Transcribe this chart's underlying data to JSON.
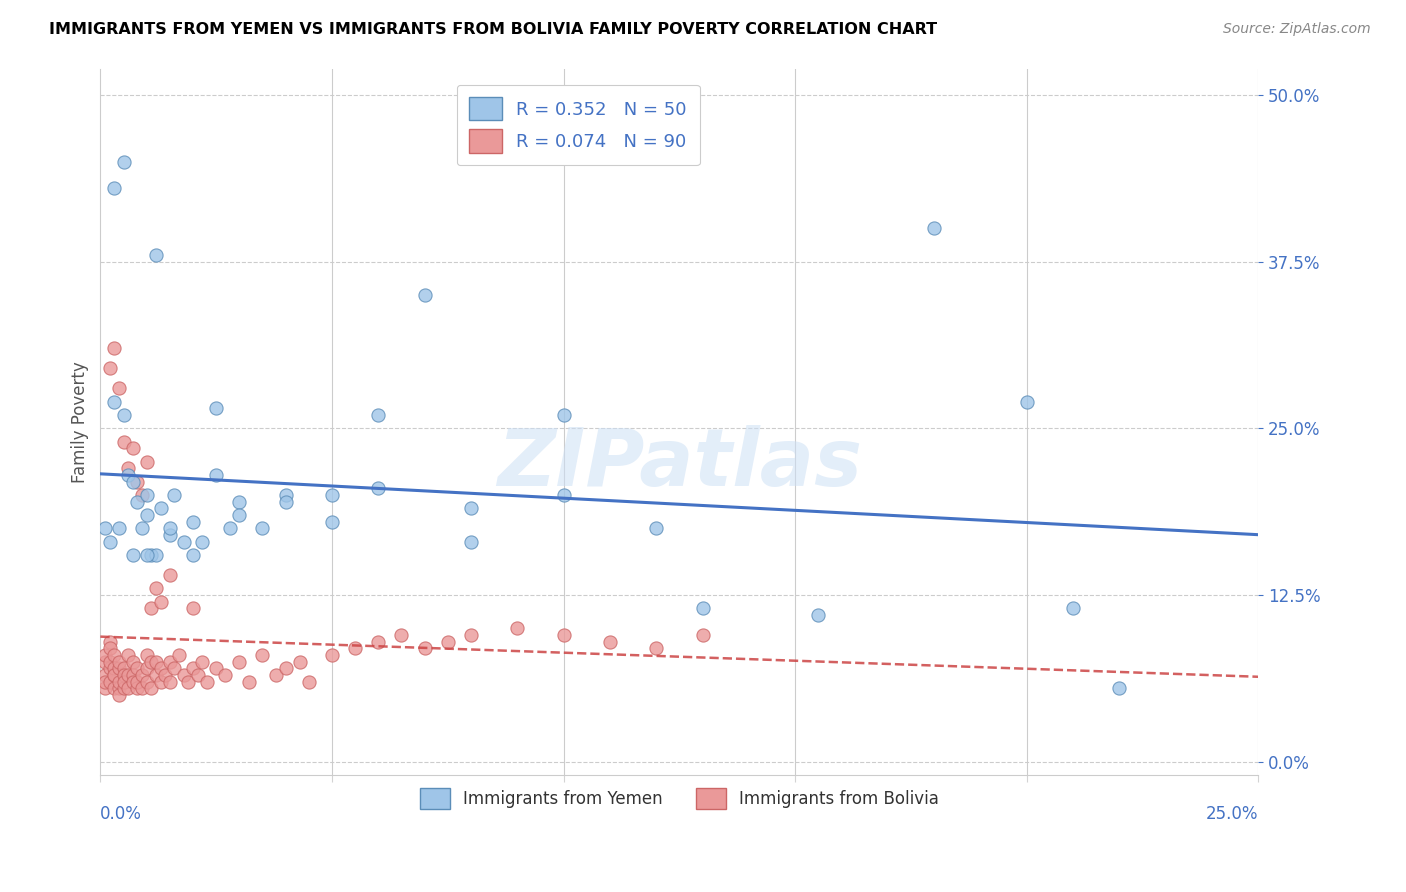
{
  "title": "IMMIGRANTS FROM YEMEN VS IMMIGRANTS FROM BOLIVIA FAMILY POVERTY CORRELATION CHART",
  "source": "Source: ZipAtlas.com",
  "ylabel": "Family Poverty",
  "ytick_labels": [
    "0.0%",
    "12.5%",
    "25.0%",
    "37.5%",
    "50.0%"
  ],
  "ytick_values": [
    0.0,
    0.125,
    0.25,
    0.375,
    0.5
  ],
  "xlim": [
    0.0,
    0.25
  ],
  "ylim": [
    -0.01,
    0.52
  ],
  "color_yemen": "#9fc5e8",
  "color_bolivia": "#ea9999",
  "color_line_yemen": "#4472c4",
  "color_line_bolivia": "#cc4444",
  "watermark": "ZIPatlas",
  "yemen_x": [
    0.001,
    0.002,
    0.003,
    0.004,
    0.005,
    0.006,
    0.007,
    0.008,
    0.009,
    0.01,
    0.01,
    0.011,
    0.012,
    0.013,
    0.015,
    0.016,
    0.018,
    0.02,
    0.022,
    0.025,
    0.028,
    0.03,
    0.035,
    0.04,
    0.05,
    0.06,
    0.07,
    0.08,
    0.1,
    0.12,
    0.003,
    0.005,
    0.007,
    0.01,
    0.012,
    0.015,
    0.02,
    0.025,
    0.03,
    0.04,
    0.05,
    0.06,
    0.08,
    0.1,
    0.13,
    0.155,
    0.18,
    0.2,
    0.21,
    0.22
  ],
  "yemen_y": [
    0.175,
    0.165,
    0.27,
    0.175,
    0.26,
    0.215,
    0.21,
    0.195,
    0.175,
    0.185,
    0.2,
    0.155,
    0.155,
    0.19,
    0.17,
    0.2,
    0.165,
    0.18,
    0.165,
    0.215,
    0.175,
    0.195,
    0.175,
    0.2,
    0.2,
    0.26,
    0.35,
    0.19,
    0.26,
    0.175,
    0.43,
    0.45,
    0.155,
    0.155,
    0.38,
    0.175,
    0.155,
    0.265,
    0.185,
    0.195,
    0.18,
    0.205,
    0.165,
    0.2,
    0.115,
    0.11,
    0.4,
    0.27,
    0.115,
    0.055
  ],
  "bolivia_x": [
    0.001,
    0.001,
    0.001,
    0.001,
    0.001,
    0.002,
    0.002,
    0.002,
    0.002,
    0.002,
    0.003,
    0.003,
    0.003,
    0.003,
    0.003,
    0.004,
    0.004,
    0.004,
    0.004,
    0.004,
    0.005,
    0.005,
    0.005,
    0.005,
    0.006,
    0.006,
    0.006,
    0.007,
    0.007,
    0.007,
    0.008,
    0.008,
    0.008,
    0.009,
    0.009,
    0.01,
    0.01,
    0.01,
    0.011,
    0.011,
    0.012,
    0.012,
    0.013,
    0.013,
    0.014,
    0.015,
    0.015,
    0.016,
    0.017,
    0.018,
    0.019,
    0.02,
    0.021,
    0.022,
    0.023,
    0.025,
    0.027,
    0.03,
    0.032,
    0.035,
    0.038,
    0.04,
    0.043,
    0.045,
    0.05,
    0.055,
    0.06,
    0.065,
    0.07,
    0.075,
    0.08,
    0.09,
    0.1,
    0.11,
    0.12,
    0.13,
    0.002,
    0.003,
    0.004,
    0.005,
    0.006,
    0.007,
    0.008,
    0.009,
    0.01,
    0.011,
    0.012,
    0.013,
    0.015,
    0.02
  ],
  "bolivia_y": [
    0.065,
    0.055,
    0.075,
    0.08,
    0.06,
    0.07,
    0.06,
    0.09,
    0.085,
    0.075,
    0.065,
    0.055,
    0.08,
    0.07,
    0.065,
    0.055,
    0.06,
    0.05,
    0.07,
    0.075,
    0.07,
    0.055,
    0.065,
    0.06,
    0.08,
    0.065,
    0.055,
    0.075,
    0.065,
    0.06,
    0.055,
    0.07,
    0.06,
    0.065,
    0.055,
    0.07,
    0.08,
    0.06,
    0.055,
    0.075,
    0.065,
    0.075,
    0.07,
    0.06,
    0.065,
    0.075,
    0.06,
    0.07,
    0.08,
    0.065,
    0.06,
    0.07,
    0.065,
    0.075,
    0.06,
    0.07,
    0.065,
    0.075,
    0.06,
    0.08,
    0.065,
    0.07,
    0.075,
    0.06,
    0.08,
    0.085,
    0.09,
    0.095,
    0.085,
    0.09,
    0.095,
    0.1,
    0.095,
    0.09,
    0.085,
    0.095,
    0.295,
    0.31,
    0.28,
    0.24,
    0.22,
    0.235,
    0.21,
    0.2,
    0.225,
    0.115,
    0.13,
    0.12,
    0.14,
    0.115
  ]
}
